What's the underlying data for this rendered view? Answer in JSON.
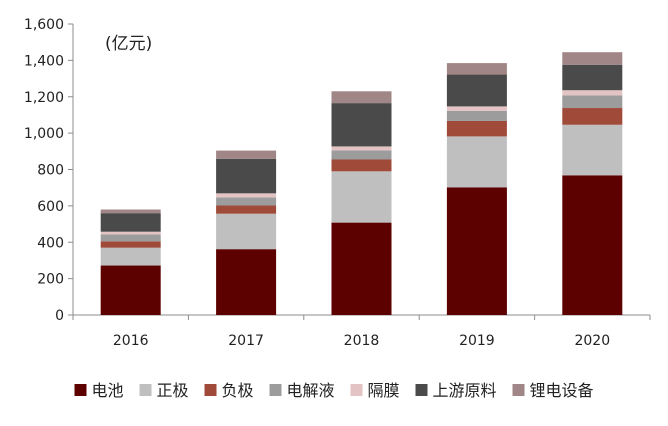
{
  "chart_data": {
    "type": "bar",
    "stacked": true,
    "unit_label": "(亿元)",
    "categories": [
      "2016",
      "2017",
      "2018",
      "2019",
      "2020"
    ],
    "ylim": [
      0,
      1600
    ],
    "yticks": [
      0,
      200,
      400,
      600,
      800,
      1000,
      1200,
      1400,
      1600
    ],
    "ytick_labels": [
      "0",
      "200",
      "400",
      "600",
      "800",
      "1,000",
      "1,200",
      "1,400",
      "1,600"
    ],
    "grid": false,
    "legend_position": "bottom",
    "series": [
      {
        "name": "电池",
        "color": "#5c0000",
        "values": [
          272,
          362,
          508,
          702,
          768
        ]
      },
      {
        "name": "正极",
        "color": "#bfbfbf",
        "values": [
          98,
          195,
          282,
          280,
          278
        ]
      },
      {
        "name": "负极",
        "color": "#a04a3a",
        "values": [
          35,
          45,
          65,
          85,
          92
        ]
      },
      {
        "name": "电解液",
        "color": "#9c9c9c",
        "values": [
          38,
          45,
          50,
          55,
          70
        ]
      },
      {
        "name": "隔膜",
        "color": "#e3c3c3",
        "values": [
          15,
          22,
          22,
          25,
          28
        ]
      },
      {
        "name": "上游原料",
        "color": "#4a4a4a",
        "values": [
          102,
          190,
          238,
          175,
          140
        ]
      },
      {
        "name": "锂电设备",
        "color": "#a08686",
        "values": [
          20,
          45,
          65,
          63,
          69
        ]
      }
    ]
  }
}
